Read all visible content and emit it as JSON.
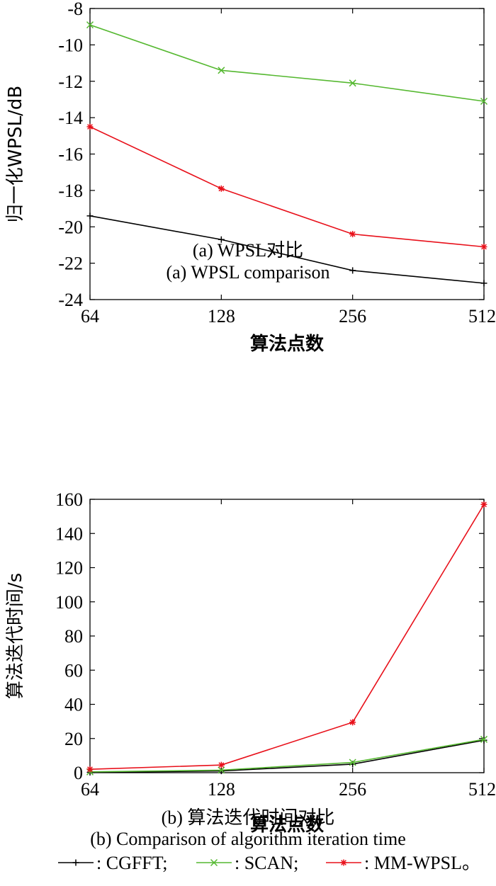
{
  "chart_data": [
    {
      "type": "line",
      "title": "",
      "xlabel": "算法点数",
      "ylabel": "归一化WPSL/dB",
      "categories": [
        "64",
        "128",
        "256",
        "512"
      ],
      "yticks": [
        "-8",
        "-10",
        "-12",
        "-14",
        "-16",
        "-18",
        "-20",
        "-22",
        "-24"
      ],
      "ylim": [
        -24,
        -8
      ],
      "grid": false,
      "series": [
        {
          "name": "CGFFT",
          "color": "#000000",
          "marker": "+",
          "values": [
            -19.4,
            -20.7,
            -22.4,
            -23.1
          ]
        },
        {
          "name": "SCAN",
          "color": "#55b830",
          "marker": "x",
          "values": [
            -8.9,
            -11.4,
            -12.1,
            -13.1
          ]
        },
        {
          "name": "MM-WPSL",
          "color": "#e8101a",
          "marker": "*",
          "values": [
            -14.5,
            -17.9,
            -20.4,
            -21.1
          ]
        }
      ]
    },
    {
      "type": "line",
      "title": "",
      "xlabel": "算法点数",
      "ylabel": "算法迭代时间/s",
      "categories": [
        "64",
        "128",
        "256",
        "512"
      ],
      "yticks": [
        "0",
        "20",
        "40",
        "60",
        "80",
        "100",
        "120",
        "140",
        "160"
      ],
      "ylim": [
        0,
        160
      ],
      "grid": false,
      "series": [
        {
          "name": "CGFFT",
          "color": "#000000",
          "marker": "+",
          "values": [
            0.2,
            1.0,
            5.0,
            19.0
          ]
        },
        {
          "name": "SCAN",
          "color": "#55b830",
          "marker": "x",
          "values": [
            0.5,
            1.5,
            6.0,
            19.5
          ]
        },
        {
          "name": "MM-WPSL",
          "color": "#e8101a",
          "marker": "*",
          "values": [
            2.0,
            4.5,
            29.5,
            157.0
          ]
        }
      ]
    }
  ],
  "captions": {
    "a_cn": "(a) WPSL对比",
    "a_en": "(a) WPSL comparison",
    "b_cn": "(b) 算法迭代时间对比",
    "b_en": "(b) Comparison of algorithm iteration time"
  },
  "legend": [
    {
      "label": ": CGFFT;",
      "color": "#000000",
      "marker": "+"
    },
    {
      "label": ": SCAN;",
      "color": "#55b830",
      "marker": "x"
    },
    {
      "label": ": MM-WPSL。",
      "color": "#e8101a",
      "marker": "*"
    }
  ]
}
